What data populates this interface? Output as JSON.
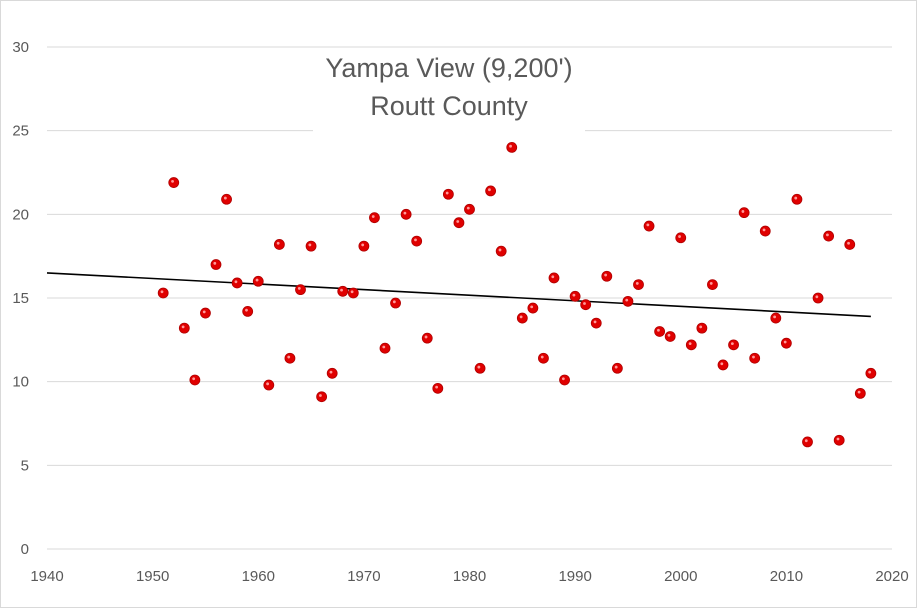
{
  "chart_data": {
    "type": "scatter",
    "title": [
      "Yampa View (9,200')",
      "Routt County"
    ],
    "xlabel": "",
    "ylabel": "",
    "xlim": [
      1940,
      2020
    ],
    "ylim": [
      0,
      30
    ],
    "x_ticks": [
      "1940",
      "1950",
      "1960",
      "1970",
      "1980",
      "1990",
      "2000",
      "2010",
      "2020"
    ],
    "y_ticks": [
      "0",
      "5",
      "10",
      "15",
      "20",
      "25",
      "30"
    ],
    "grid": "horizontal",
    "marker_color": "#e00000",
    "trendline_color": "#000000",
    "trendline": {
      "x": [
        1940,
        2018
      ],
      "y": [
        16.5,
        13.9
      ]
    },
    "series": [
      {
        "points": [
          [
            1951,
            15.3
          ],
          [
            1952,
            21.9
          ],
          [
            1953,
            13.2
          ],
          [
            1954,
            10.1
          ],
          [
            1955,
            14.1
          ],
          [
            1956,
            17.0
          ],
          [
            1957,
            20.9
          ],
          [
            1958,
            15.9
          ],
          [
            1959,
            14.2
          ],
          [
            1960,
            16.0
          ],
          [
            1961,
            9.8
          ],
          [
            1962,
            18.2
          ],
          [
            1963,
            11.4
          ],
          [
            1964,
            15.5
          ],
          [
            1965,
            18.1
          ],
          [
            1966,
            9.1
          ],
          [
            1967,
            10.5
          ],
          [
            1968,
            15.4
          ],
          [
            1969,
            15.3
          ],
          [
            1970,
            18.1
          ],
          [
            1971,
            19.8
          ],
          [
            1972,
            12.0
          ],
          [
            1973,
            14.7
          ],
          [
            1974,
            20.0
          ],
          [
            1975,
            18.4
          ],
          [
            1976,
            12.6
          ],
          [
            1977,
            9.6
          ],
          [
            1978,
            21.2
          ],
          [
            1979,
            19.5
          ],
          [
            1980,
            20.3
          ],
          [
            1981,
            10.8
          ],
          [
            1982,
            21.4
          ],
          [
            1983,
            17.8
          ],
          [
            1984,
            24.0
          ],
          [
            1985,
            13.8
          ],
          [
            1986,
            14.4
          ],
          [
            1987,
            11.4
          ],
          [
            1988,
            16.2
          ],
          [
            1989,
            10.1
          ],
          [
            1990,
            15.1
          ],
          [
            1991,
            14.6
          ],
          [
            1992,
            13.5
          ],
          [
            1993,
            16.3
          ],
          [
            1994,
            10.8
          ],
          [
            1995,
            14.8
          ],
          [
            1996,
            15.8
          ],
          [
            1997,
            19.3
          ],
          [
            1998,
            13.0
          ],
          [
            1999,
            12.7
          ],
          [
            2000,
            18.6
          ],
          [
            2001,
            12.2
          ],
          [
            2002,
            13.2
          ],
          [
            2003,
            15.8
          ],
          [
            2004,
            11.0
          ],
          [
            2005,
            12.2
          ],
          [
            2006,
            20.1
          ],
          [
            2007,
            11.4
          ],
          [
            2008,
            19.0
          ],
          [
            2009,
            13.8
          ],
          [
            2010,
            12.3
          ],
          [
            2011,
            20.9
          ],
          [
            2012,
            6.4
          ],
          [
            2013,
            15.0
          ],
          [
            2014,
            18.7
          ],
          [
            2015,
            6.5
          ],
          [
            2016,
            18.2
          ],
          [
            2017,
            9.3
          ],
          [
            2018,
            10.5
          ]
        ]
      }
    ]
  }
}
